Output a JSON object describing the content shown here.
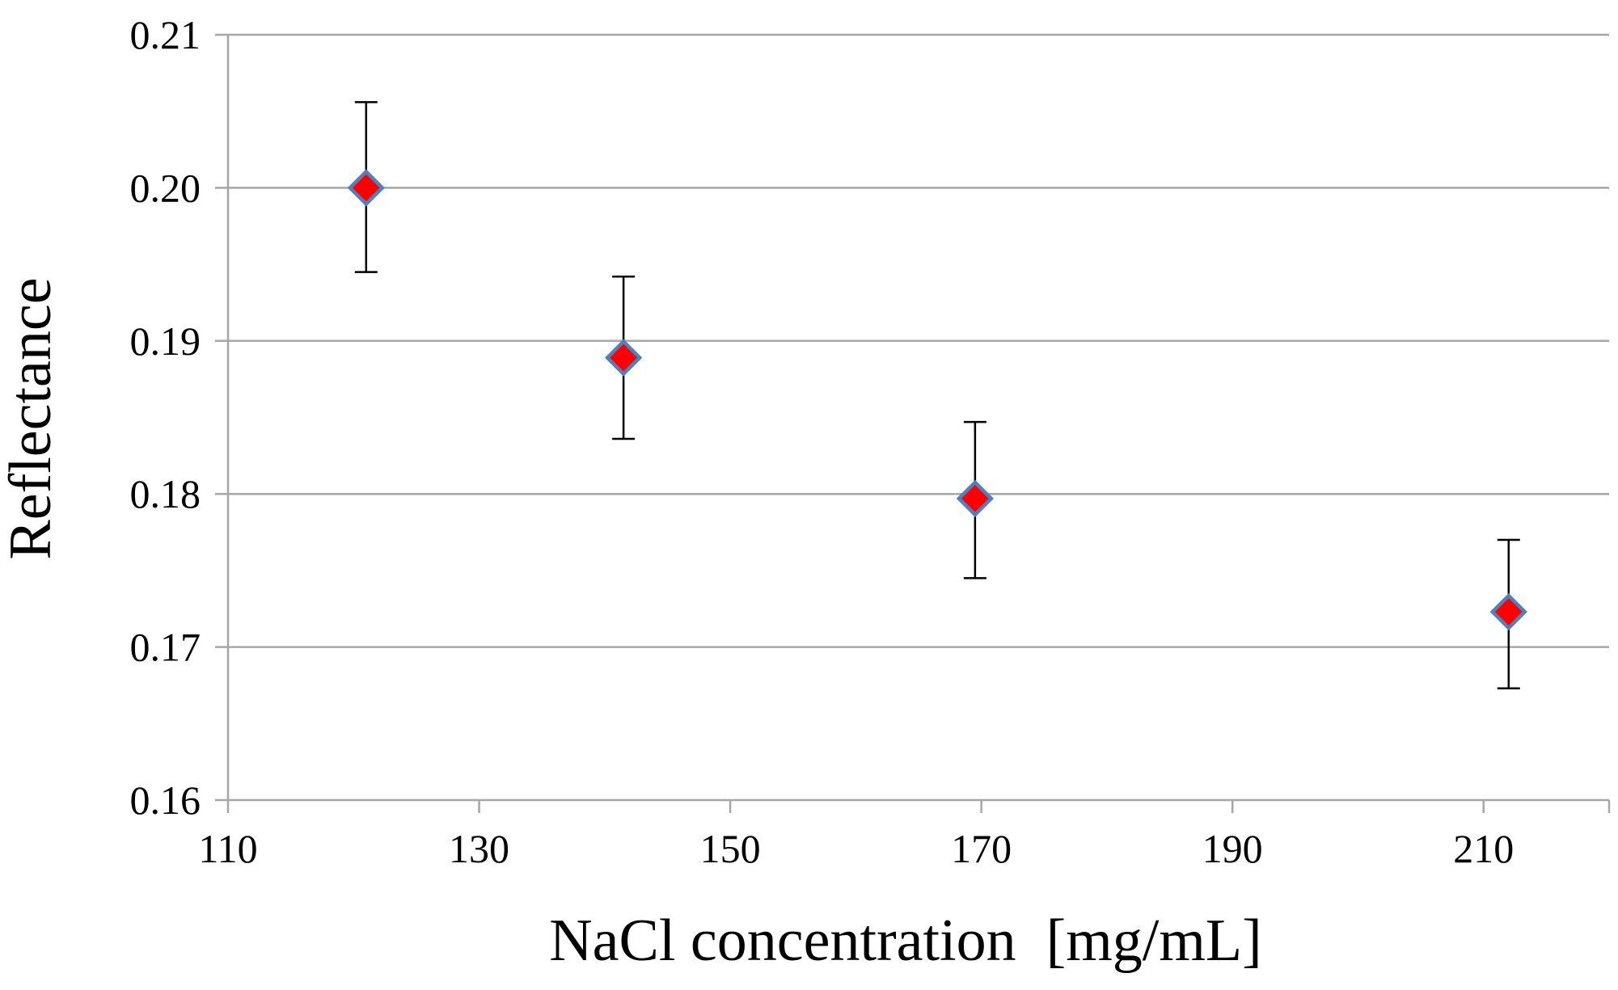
{
  "chart_data": {
    "type": "scatter",
    "title": "",
    "xlabel": "NaCl concentration  [mg/mL]",
    "ylabel": "Reflectance",
    "xlim": [
      110,
      220
    ],
    "ylim": [
      0.16,
      0.21
    ],
    "x_ticks": [
      {
        "value": 110,
        "label": "110"
      },
      {
        "value": 130,
        "label": "130"
      },
      {
        "value": 150,
        "label": "150"
      },
      {
        "value": 170,
        "label": "170"
      },
      {
        "value": 190,
        "label": "190"
      },
      {
        "value": 210,
        "label": "210"
      }
    ],
    "y_ticks": [
      {
        "value": 0.16,
        "label": "0.16"
      },
      {
        "value": 0.17,
        "label": "0.17"
      },
      {
        "value": 0.18,
        "label": "0.18"
      },
      {
        "value": 0.19,
        "label": "0.19"
      },
      {
        "value": 0.2,
        "label": "0.20"
      },
      {
        "value": 0.21,
        "label": "0.21"
      }
    ],
    "grid": "horizontal",
    "legend": "none",
    "series": [
      {
        "name": "Reflectance",
        "marker": "diamond",
        "marker_fill": "#ff0000",
        "marker_edge": "#4f81bd",
        "points": [
          {
            "x": 121,
            "y": 0.2,
            "y_err_low": 0.1945,
            "y_err_high": 0.2056
          },
          {
            "x": 141.5,
            "y": 0.1889,
            "y_err_low": 0.1836,
            "y_err_high": 0.1942
          },
          {
            "x": 169.5,
            "y": 0.1797,
            "y_err_low": 0.1745,
            "y_err_high": 0.1847
          },
          {
            "x": 212,
            "y": 0.1723,
            "y_err_low": 0.1673,
            "y_err_high": 0.177
          }
        ]
      }
    ]
  },
  "colors": {
    "grid": "#a6a6a6",
    "axis": "#a6a6a6",
    "error_bar": "#000000",
    "text": "#000000"
  }
}
